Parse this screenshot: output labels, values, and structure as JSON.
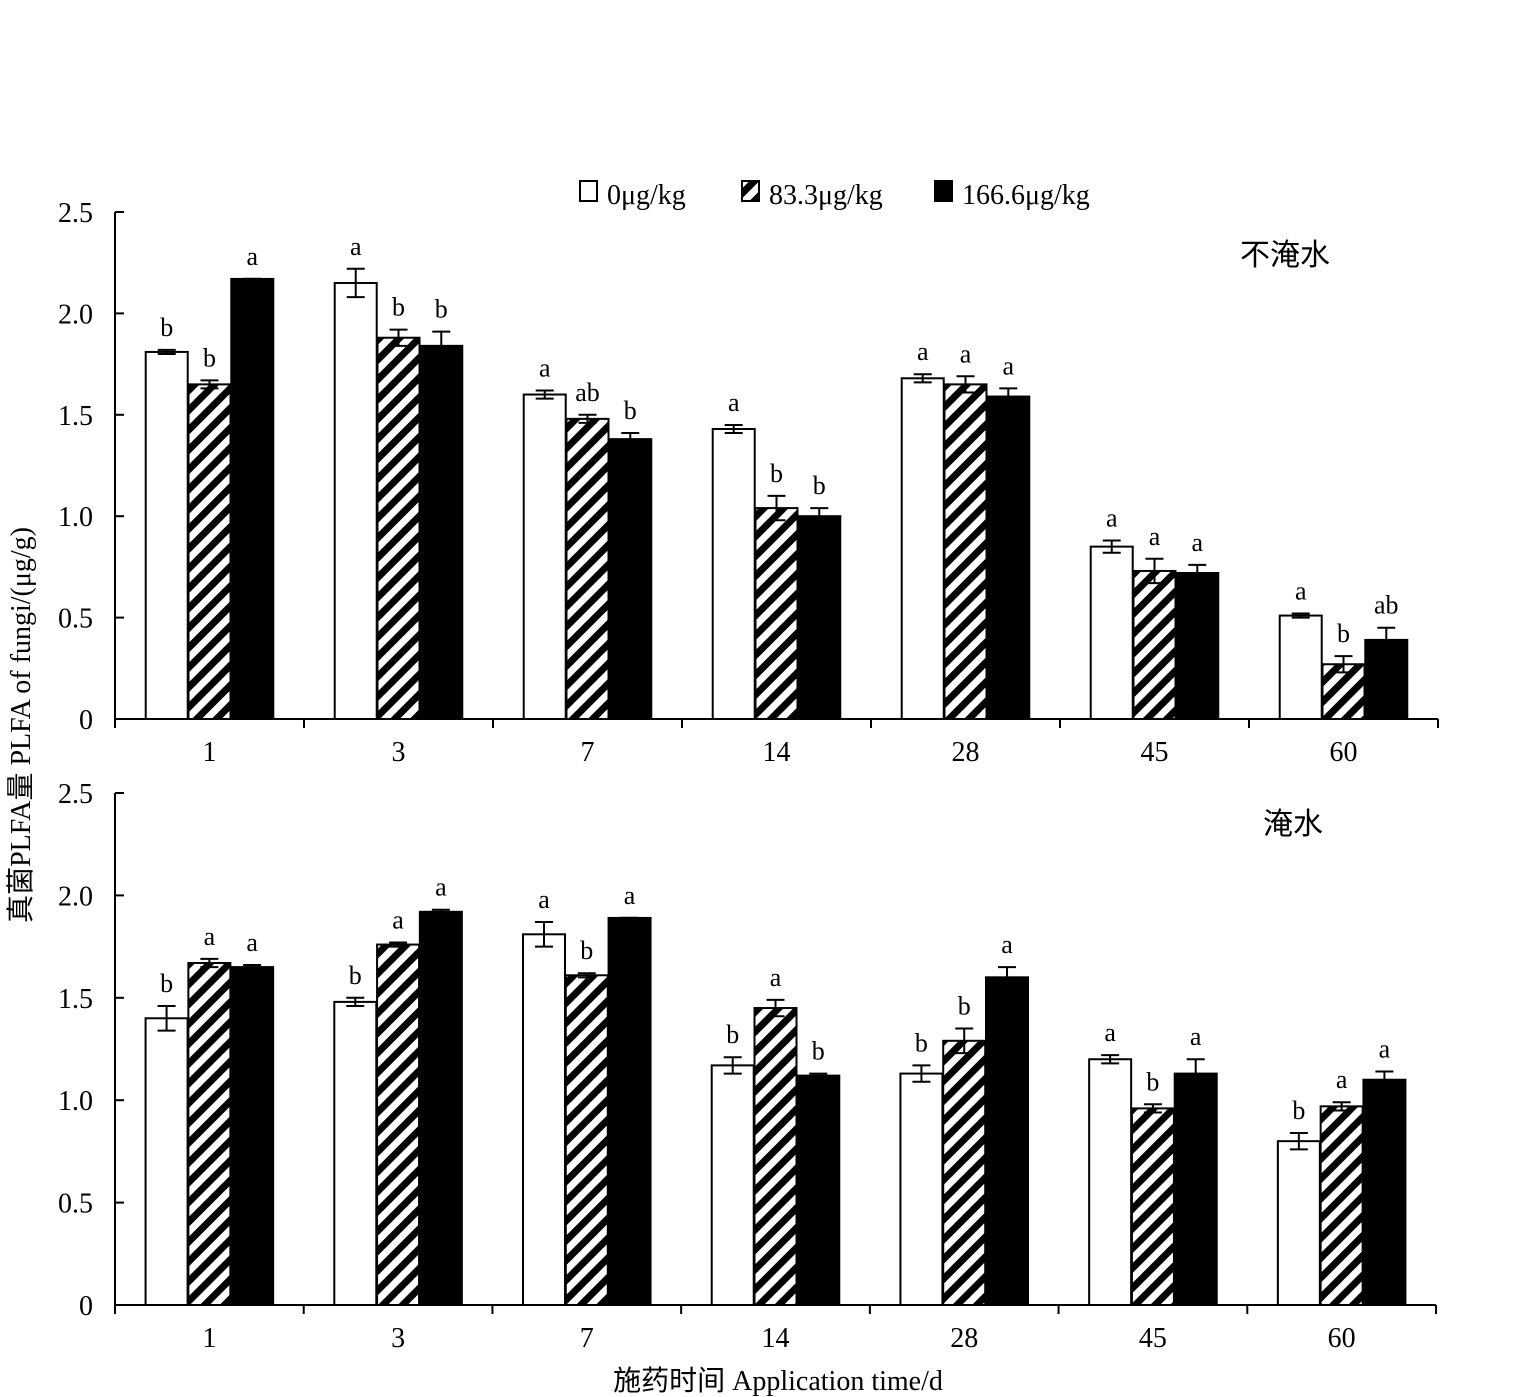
{
  "chart_data": {
    "type": "bar",
    "legend": {
      "placement": "top-center",
      "entries": [
        {
          "name": "0μg/kg",
          "fill": "#ffffff"
        },
        {
          "name": "83.3μg/kg",
          "fill": "hatch"
        },
        {
          "name": "166.6μg/kg",
          "fill": "#000000"
        }
      ]
    },
    "xlabel": "施药时间 Application time/d",
    "ylabel": "真菌PLFA量 PLFA of fungi/(μg/g)",
    "categories": [
      "1",
      "3",
      "7",
      "14",
      "28",
      "45",
      "60"
    ],
    "ylim": [
      0,
      2.5
    ],
    "yticks": [
      "0",
      "0.5",
      "1.0",
      "1.5",
      "2.0",
      "2.5"
    ],
    "grid": false,
    "panels": [
      {
        "title": "不淹水",
        "series": [
          {
            "name": "0μg/kg",
            "values": [
              1.81,
              2.15,
              1.6,
              1.43,
              1.68,
              0.85,
              0.51
            ],
            "errors": [
              0.01,
              0.07,
              0.02,
              0.02,
              0.02,
              0.03,
              0.01
            ],
            "labels": [
              "b",
              "a",
              "a",
              "a",
              "a",
              "a",
              "a"
            ]
          },
          {
            "name": "83.3μg/kg",
            "values": [
              1.65,
              1.88,
              1.48,
              1.04,
              1.65,
              0.73,
              0.27
            ],
            "errors": [
              0.02,
              0.04,
              0.02,
              0.06,
              0.04,
              0.06,
              0.04
            ],
            "labels": [
              "b",
              "b",
              "ab",
              "b",
              "a",
              "a",
              "b"
            ]
          },
          {
            "name": "166.6μg/kg",
            "values": [
              2.17,
              1.84,
              1.38,
              1.0,
              1.59,
              0.72,
              0.39
            ],
            "errors": [
              0.0,
              0.07,
              0.03,
              0.04,
              0.04,
              0.04,
              0.06
            ],
            "labels": [
              "a",
              "b",
              "b",
              "b",
              "a",
              "a",
              "ab"
            ]
          }
        ]
      },
      {
        "title": "淹水",
        "series": [
          {
            "name": "0μg/kg",
            "values": [
              1.4,
              1.48,
              1.81,
              1.17,
              1.13,
              1.2,
              0.8
            ],
            "errors": [
              0.06,
              0.02,
              0.06,
              0.04,
              0.04,
              0.02,
              0.04
            ],
            "labels": [
              "b",
              "b",
              "a",
              "b",
              "b",
              "a",
              "b"
            ]
          },
          {
            "name": "83.3μg/kg",
            "values": [
              1.67,
              1.76,
              1.61,
              1.45,
              1.29,
              0.96,
              0.97
            ],
            "errors": [
              0.02,
              0.01,
              0.01,
              0.04,
              0.06,
              0.02,
              0.02
            ],
            "labels": [
              "a",
              "a",
              "b",
              "a",
              "b",
              "b",
              "a"
            ]
          },
          {
            "name": "166.6μg/kg",
            "values": [
              1.65,
              1.92,
              1.89,
              1.12,
              1.6,
              1.13,
              1.1
            ],
            "errors": [
              0.01,
              0.01,
              0.0,
              0.01,
              0.05,
              0.07,
              0.04
            ],
            "labels": [
              "a",
              "a",
              "a",
              "b",
              "a",
              "a",
              "a"
            ]
          }
        ]
      }
    ]
  }
}
